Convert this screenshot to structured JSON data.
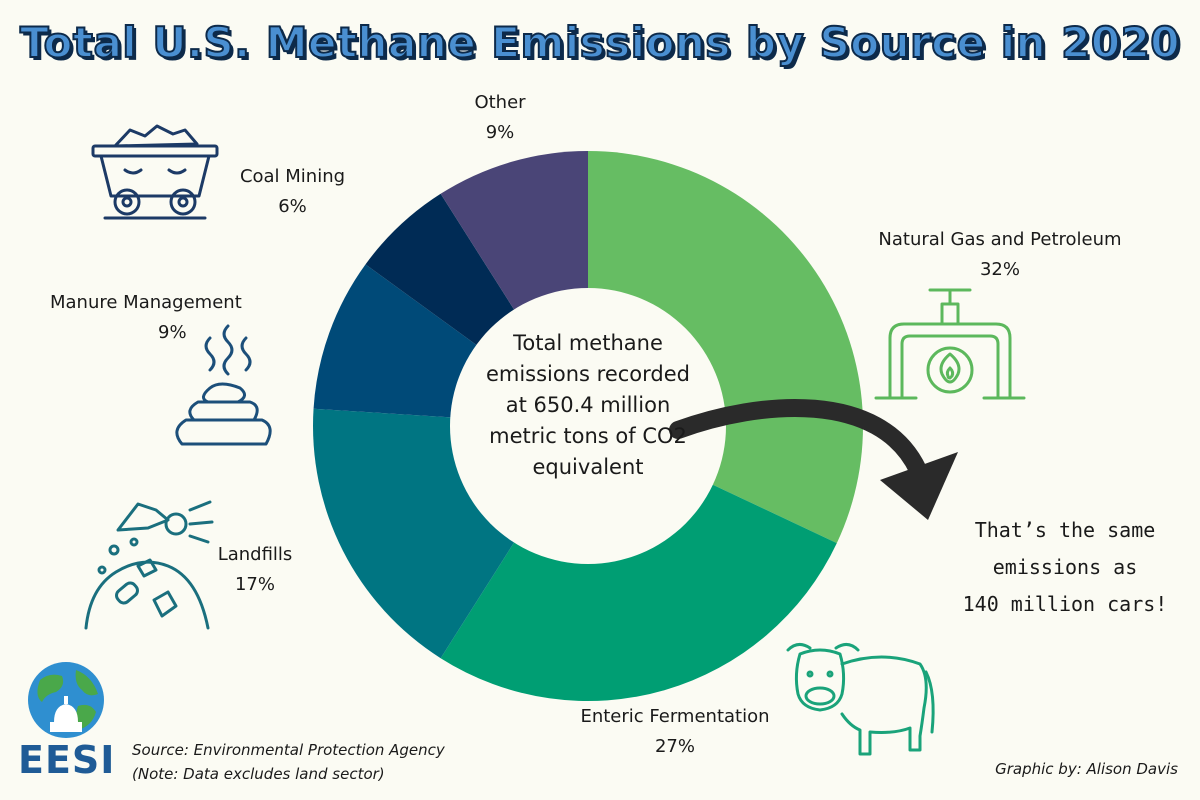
{
  "title": "Total U.S. Methane Emissions by Source in 2020",
  "chart_data": {
    "type": "pie",
    "variant": "donut",
    "title": "Total U.S. Methane Emissions by Source in 2020",
    "slices": [
      {
        "name": "Natural Gas and Petroleum",
        "value": 32,
        "label": "32%",
        "color": "#66bd63"
      },
      {
        "name": "Enteric Fermentation",
        "value": 27,
        "label": "27%",
        "color": "#009e73"
      },
      {
        "name": "Landfills",
        "value": 17,
        "label": "17%",
        "color": "#007582"
      },
      {
        "name": "Manure Management",
        "value": 9,
        "label": "9%",
        "color": "#004a78"
      },
      {
        "name": "Coal Mining",
        "value": 6,
        "label": "6%",
        "color": "#002b55"
      },
      {
        "name": "Other",
        "value": 9,
        "label": "9%",
        "color": "#4a4577"
      }
    ],
    "center_text": "Total methane emissions recorded at 650.4 million metric tons of CO2 equivalent"
  },
  "note": {
    "lines": [
      "That’s the same",
      "emissions as",
      "140 million cars!"
    ]
  },
  "source": {
    "line1": "Source: Environmental Protection Agency",
    "line2": "(Note: Data excludes land sector)"
  },
  "credit": "Graphic by: Alison Davis",
  "logo": {
    "text": "EESI"
  },
  "icons": [
    "coal-cart-icon",
    "manure-icon",
    "landfill-icon",
    "pipeline-flame-icon",
    "cow-icon",
    "globe-capitol-icon"
  ]
}
